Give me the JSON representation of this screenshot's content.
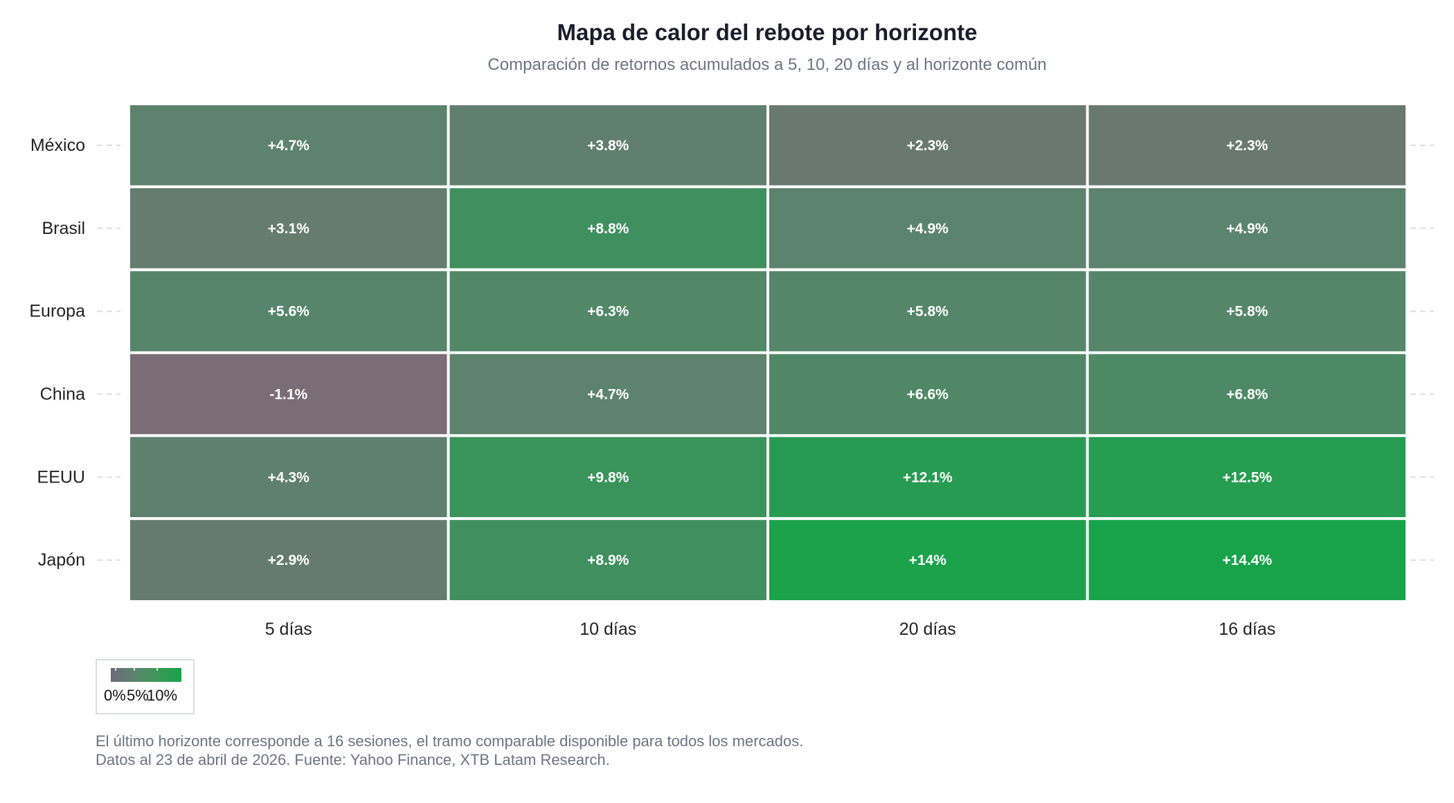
{
  "chart_data": {
    "type": "heatmap",
    "title": "Mapa de calor del rebote por horizonte",
    "subtitle": "Comparación de retornos acumulados a 5, 10, 20 días y al horizonte común",
    "rows": [
      "México",
      "Brasil",
      "Europa",
      "China",
      "EEUU",
      "Japón"
    ],
    "columns": [
      "5 días",
      "10 días",
      "20 días",
      "16 días"
    ],
    "values": [
      [
        4.7,
        3.8,
        2.3,
        2.3
      ],
      [
        3.1,
        8.8,
        4.9,
        4.9
      ],
      [
        5.6,
        6.3,
        5.8,
        5.8
      ],
      [
        -1.1,
        4.7,
        6.6,
        6.8
      ],
      [
        4.3,
        9.8,
        12.1,
        12.5
      ],
      [
        2.9,
        8.9,
        14,
        14.4
      ]
    ],
    "labels": [
      [
        "+4.7%",
        "+3.8%",
        "+2.3%",
        "+2.3%"
      ],
      [
        "+3.1%",
        "+8.8%",
        "+4.9%",
        "+4.9%"
      ],
      [
        "+5.6%",
        "+6.3%",
        "+5.8%",
        "+5.8%"
      ],
      [
        "-1.1%",
        "+4.7%",
        "+6.6%",
        "+6.8%"
      ],
      [
        "+4.3%",
        "+9.8%",
        "+12.1%",
        "+12.5%"
      ],
      [
        "+2.9%",
        "+8.9%",
        "+14%",
        "+14.4%"
      ]
    ],
    "color_scale": {
      "low": "#7b6d75",
      "mid": "#5b836d",
      "high": "#18a34a"
    },
    "legend": {
      "ticks": [
        "0%",
        "5%",
        "10%"
      ],
      "placement": "bottom-left"
    }
  },
  "footnotes": [
    "El último horizonte corresponde a 16 sesiones, el tramo comparable disponible para todos los mercados.",
    "Datos al 23 de abril de 2026. Fuente: Yahoo Finance, XTB Latam Research."
  ]
}
